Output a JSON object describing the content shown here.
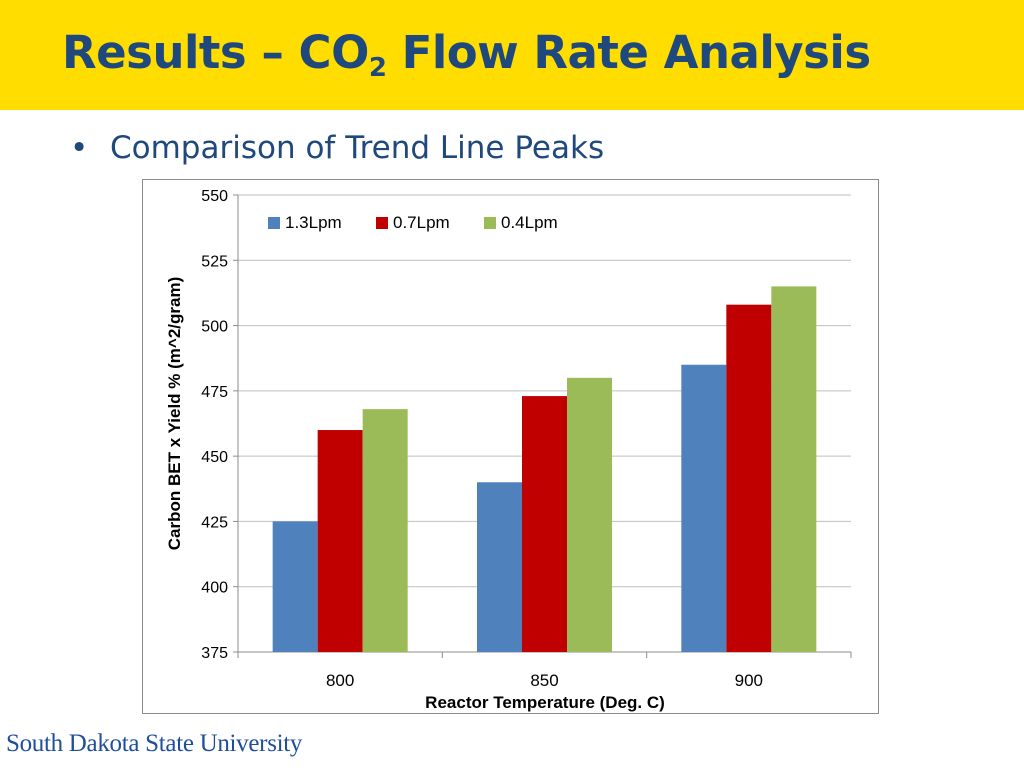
{
  "slide": {
    "title_main": "Results – CO",
    "title_sub": "2",
    "title_rest": " Flow Rate Analysis",
    "bullet_marker": "•",
    "bullet": "Comparison of Trend Line Peaks",
    "footer": "South Dakota State University"
  },
  "colors": {
    "title_band": "#FFDD00",
    "title_text": "#1F497D",
    "series": [
      "#4F81BD",
      "#C00000",
      "#9BBB59"
    ]
  },
  "chart_data": {
    "type": "bar",
    "title": "",
    "xlabel": "Reactor Temperature (Deg. C)",
    "ylabel": "Carbon BET x Yield %  (m^2/gram)",
    "categories": [
      "800",
      "850",
      "900"
    ],
    "ylim": [
      375,
      550
    ],
    "yticks": [
      375,
      400,
      425,
      450,
      475,
      500,
      525,
      550
    ],
    "grid": true,
    "legend_position": "top-left",
    "series": [
      {
        "name": "1.3Lpm",
        "values": [
          425,
          440,
          485
        ]
      },
      {
        "name": "0.7Lpm",
        "values": [
          460,
          473,
          508
        ]
      },
      {
        "name": "0.4Lpm",
        "values": [
          468,
          480,
          515
        ]
      }
    ]
  }
}
